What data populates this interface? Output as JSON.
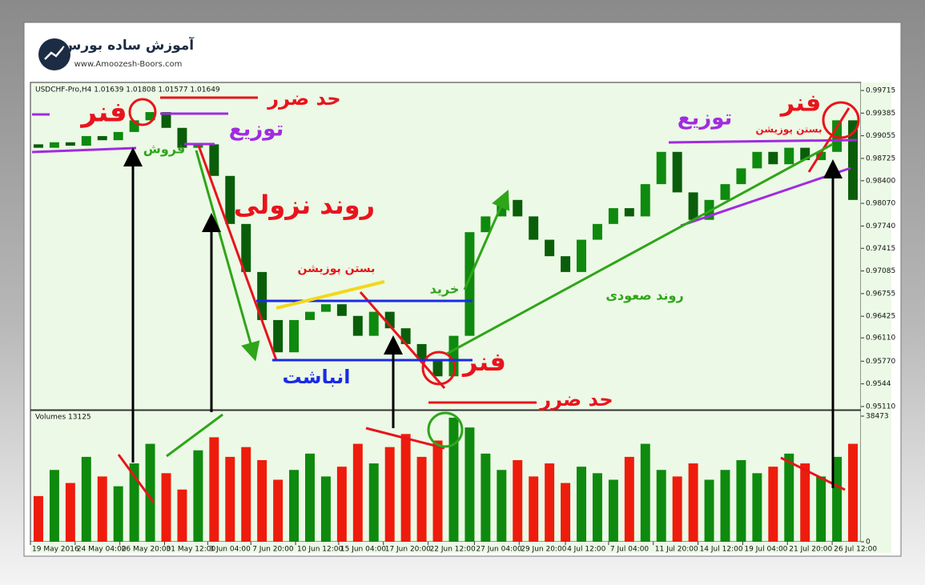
{
  "logo": {
    "name": "آموزش ساده بورس",
    "url": "www.Amoozesh-Boors.com"
  },
  "chart_data": [
    {
      "type": "candlestick",
      "title": "USDCHF-Pro,H4  1.01639 1.01808 1.01577 1.01649",
      "open": [
        0.9893,
        0.9888,
        0.9896,
        0.9891,
        0.9905,
        0.9899,
        0.9911,
        0.9928,
        0.994,
        0.9917,
        0.9888,
        0.9893,
        0.9847,
        0.9777,
        0.9707,
        0.9637,
        0.959,
        0.9637,
        0.9649,
        0.966,
        0.9643,
        0.9614,
        0.9649,
        0.9625,
        0.9602,
        0.9579,
        0.9555,
        0.9614,
        0.9765,
        0.9788,
        0.9812,
        0.9788,
        0.9754,
        0.973,
        0.9707,
        0.9754,
        0.9777,
        0.98,
        0.9788,
        0.9835,
        0.9882,
        0.9823,
        0.9783,
        0.9812,
        0.9835,
        0.9858,
        0.9882,
        0.9864,
        0.9888,
        0.987,
        0.9882,
        0.9928
      ],
      "close": [
        0.9888,
        0.9896,
        0.9891,
        0.9905,
        0.9899,
        0.9911,
        0.9928,
        0.994,
        0.9917,
        0.9888,
        0.9893,
        0.9847,
        0.9777,
        0.9707,
        0.9637,
        0.959,
        0.9637,
        0.9649,
        0.966,
        0.9643,
        0.9614,
        0.9649,
        0.9625,
        0.9602,
        0.9579,
        0.9555,
        0.9614,
        0.9765,
        0.9788,
        0.9812,
        0.9788,
        0.9754,
        0.973,
        0.9707,
        0.9754,
        0.9777,
        0.98,
        0.9788,
        0.9835,
        0.9882,
        0.9823,
        0.9783,
        0.9812,
        0.9835,
        0.9858,
        0.9882,
        0.9864,
        0.9888,
        0.987,
        0.9882,
        0.9928,
        0.9812
      ],
      "up_color": "#0e8a0e",
      "down_color": "#0a5e0a",
      "xlim": [
        -0.5,
        51.5
      ],
      "xticks": [
        {
          "value": -0.5,
          "label": "19 May 2016"
        },
        {
          "value": 2.3,
          "label": "24 May 04:00"
        },
        {
          "value": 5.1,
          "label": "26 May 20:00"
        },
        {
          "value": 7.9,
          "label": "31 May 12:00"
        },
        {
          "value": 10.6,
          "label": "3 Jun 04:00"
        },
        {
          "value": 13.3,
          "label": "7 Jun 20:00"
        },
        {
          "value": 16.1,
          "label": "10 Jun 12:00"
        },
        {
          "value": 18.8,
          "label": "15 Jun 04:00"
        },
        {
          "value": 21.6,
          "label": "17 Jun 20:00"
        },
        {
          "value": 24.4,
          "label": "22 Jun 12:00"
        },
        {
          "value": 27.3,
          "label": "27 Jun 04:00"
        },
        {
          "value": 30.1,
          "label": "29 Jun 20:00"
        },
        {
          "value": 33.0,
          "label": "4 Jul 12:00"
        },
        {
          "value": 35.7,
          "label": "7 Jul 04:00"
        },
        {
          "value": 38.5,
          "label": "11 Jul 20:00"
        },
        {
          "value": 41.3,
          "label": "14 Jul 12:00"
        },
        {
          "value": 44.1,
          "label": "19 Jul 04:00"
        },
        {
          "value": 46.9,
          "label": "21 Jul 20:00"
        },
        {
          "value": 49.7,
          "label": "26 Jul 12:00"
        }
      ],
      "ylim": [
        0.95063,
        0.99832
      ],
      "yticks": [
        {
          "value": 0.9511,
          "label": "0.95110"
        },
        0.9544,
        {
          "value": 0.9577,
          "label": "0.95770"
        },
        {
          "value": 0.9611,
          "label": "0.96110"
        },
        0.96425,
        0.96755,
        0.97085,
        0.97415,
        {
          "value": 0.9774,
          "label": "0.97740"
        },
        {
          "value": 0.9807,
          "label": "0.98070"
        },
        {
          "value": 0.984,
          "label": "0.98400"
        },
        0.98725,
        0.99055,
        0.99385,
        0.99715
      ],
      "annotations": [
        "فنر",
        "حد ضرر",
        "توزیع",
        "فروش",
        "روند نزولی",
        "بستن پوزیشن",
        "خرید",
        "انباشت",
        "فنر",
        "حد ضرر",
        "روند صعودی",
        "توزیع",
        "فنر",
        "بستن پوزیشن"
      ]
    },
    {
      "type": "bar",
      "title": "Volumes 13125",
      "values": [
        14000,
        22000,
        18000,
        26000,
        20000,
        17000,
        24000,
        30000,
        21000,
        16000,
        28000,
        32000,
        26000,
        29000,
        25000,
        19000,
        22000,
        27000,
        20000,
        23000,
        30000,
        24000,
        29000,
        33000,
        26000,
        31000,
        38000,
        35000,
        27000,
        22000,
        25000,
        20000,
        24000,
        18000,
        23000,
        21000,
        19000,
        26000,
        30000,
        22000,
        20000,
        24000,
        19000,
        22000,
        25000,
        21000,
        23000,
        27000,
        24000,
        20000,
        26000,
        30000
      ],
      "up_color": "#0e8a0e",
      "down_color": "#ee1c0c",
      "ylim": [
        0,
        38473
      ],
      "yticks": [
        0,
        38473
      ]
    }
  ]
}
